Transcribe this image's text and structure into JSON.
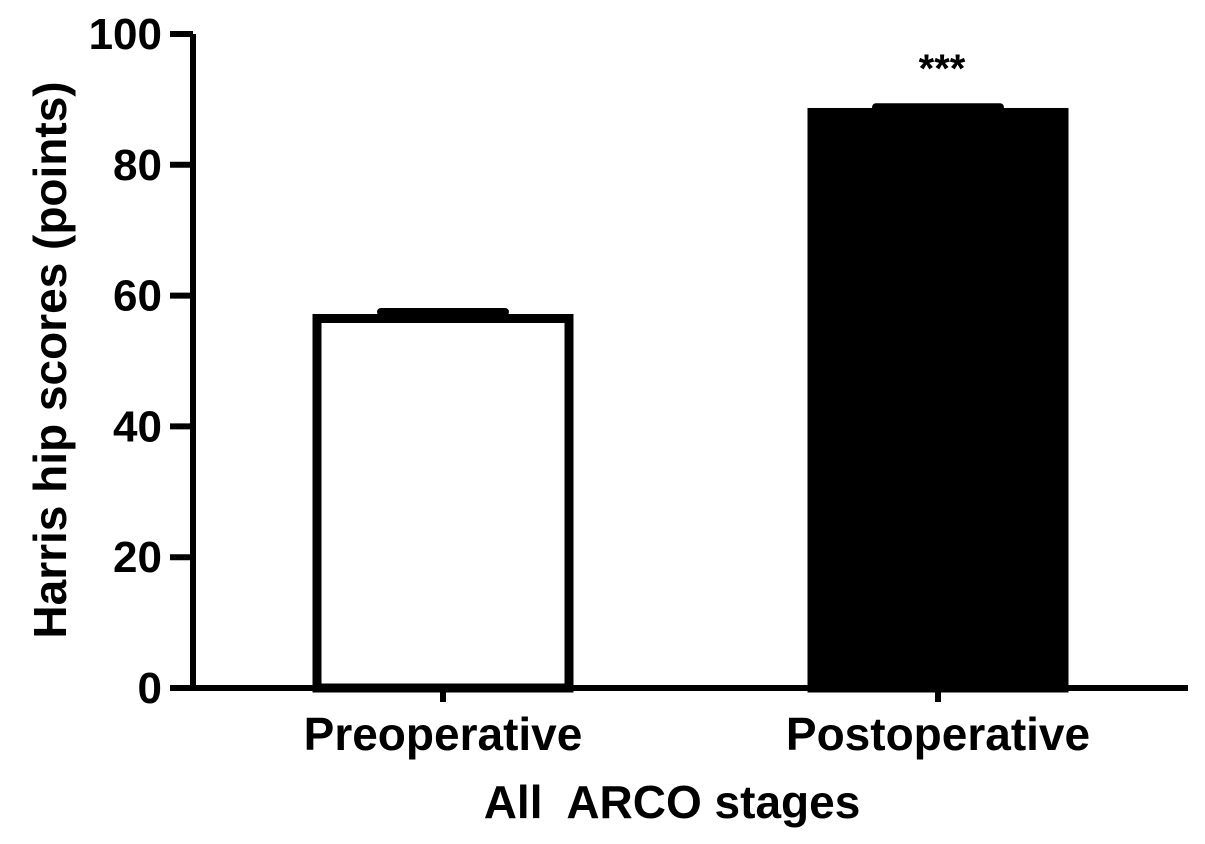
{
  "chart_data": {
    "type": "bar",
    "title": "",
    "xlabel": "All  ARCO stages",
    "ylabel": "Harris hip scores (points)",
    "ylim": [
      0,
      100
    ],
    "yticks": [
      0,
      20,
      40,
      60,
      80,
      100
    ],
    "categories": [
      "Preoperative",
      "Postoperative"
    ],
    "values": [
      56.5,
      88.0
    ],
    "errors": [
      1.0,
      0.8
    ],
    "bar_fills": [
      "#ffffff",
      "#000000"
    ],
    "annotations": [
      {
        "category": "Postoperative",
        "text": "***"
      }
    ],
    "grid": false,
    "legend": "none"
  },
  "colors": {
    "axis": "#000000",
    "bar_outline": "#000000"
  }
}
